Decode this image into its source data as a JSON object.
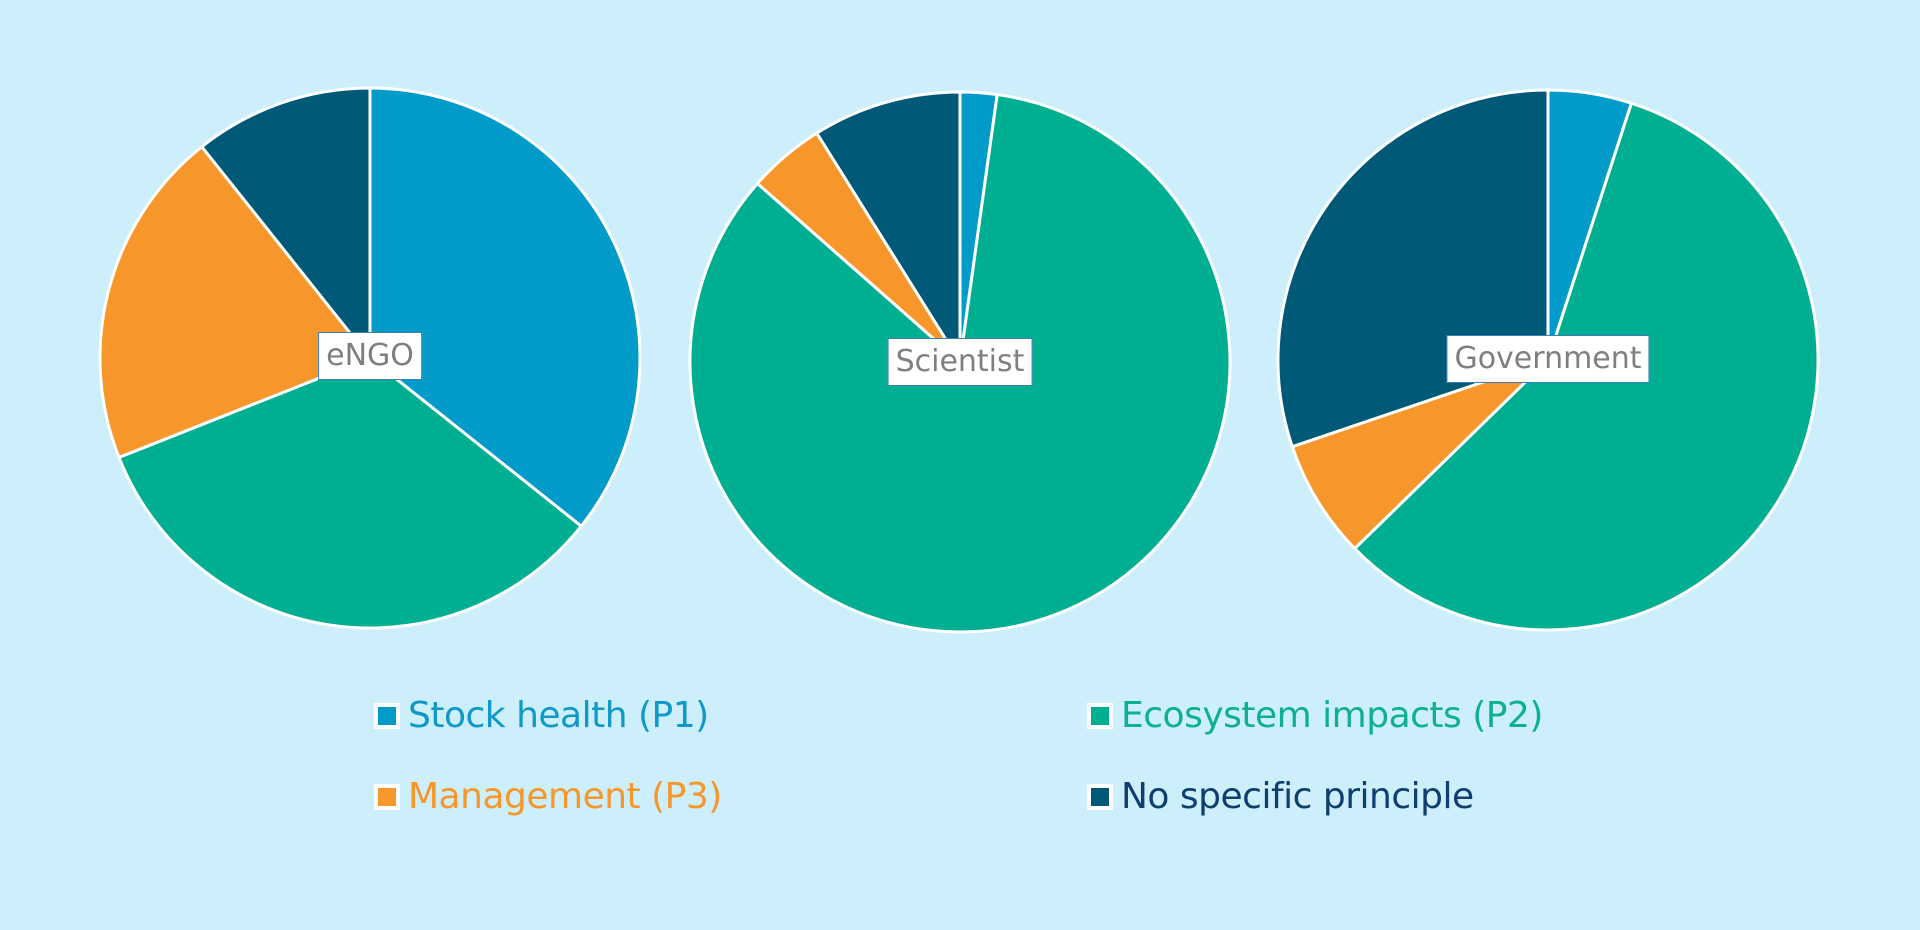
{
  "chart_data": {
    "type": "pie",
    "slice_order": [
      "Stock health (P1)",
      "Ecosystem impacts (P2)",
      "Management (P3)",
      "No specific principle"
    ],
    "colors": {
      "Stock health (P1)": "#009bc9",
      "Ecosystem impacts (P2)": "#00af92",
      "Management (P3)": "#f7962b",
      "No specific principle": "#005a77"
    },
    "legend_text_colors": {
      "Stock health (P1)": "#0f98c8",
      "Ecosystem impacts (P2)": "#0eaf92",
      "Management (P3)": "#f7962b",
      "No specific principle": "#0f3f70"
    },
    "pies": [
      {
        "label": "eNGO",
        "values": [
          35.7,
          33.3,
          20.3,
          10.7
        ]
      },
      {
        "label": "Scientist",
        "values": [
          2.2,
          84.3,
          4.6,
          8.9
        ]
      },
      {
        "label": "Government",
        "values": [
          5.0,
          57.7,
          7.1,
          30.2
        ]
      }
    ],
    "legend": [
      {
        "name": "Stock health (P1)"
      },
      {
        "name": "Ecosystem impacts (P2)"
      },
      {
        "name": "Management (P3)"
      },
      {
        "name": "No specific principle"
      }
    ],
    "background": "#cdeffb"
  }
}
